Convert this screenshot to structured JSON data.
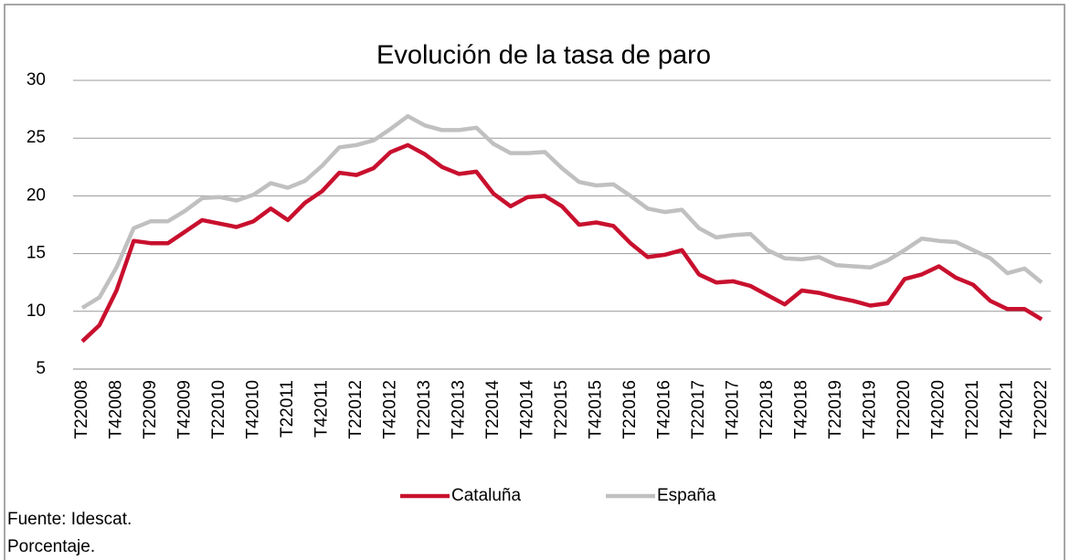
{
  "chart_data": {
    "type": "line",
    "title": "Evolución de la tasa de paro",
    "categories": [
      "T22008",
      null,
      "T42008",
      null,
      "T22009",
      null,
      "T42009",
      null,
      "T22010",
      null,
      "T42010",
      null,
      "T22011",
      null,
      "T42011",
      null,
      "T22012",
      null,
      "T42012",
      null,
      "T22013",
      null,
      "T42013",
      null,
      "T22014",
      null,
      "T42014",
      null,
      "T22015",
      null,
      "T42015",
      null,
      "T22016",
      null,
      "T42016",
      null,
      "T22017",
      null,
      "T42017",
      null,
      "T22018",
      null,
      "T42018",
      null,
      "T22019",
      null,
      "T42019",
      null,
      "T22020",
      null,
      "T42020",
      null,
      "T22021",
      null,
      "T42021",
      null,
      "T22022"
    ],
    "series": [
      {
        "name": "Cataluña",
        "color": "#c8102e",
        "values": [
          7.4,
          8.8,
          11.8,
          16.1,
          15.9,
          15.9,
          16.9,
          17.9,
          17.6,
          17.3,
          17.8,
          18.9,
          17.9,
          19.4,
          20.4,
          22.0,
          21.8,
          22.4,
          23.8,
          24.4,
          23.6,
          22.5,
          21.9,
          22.1,
          20.2,
          19.1,
          19.9,
          20.0,
          19.1,
          17.5,
          17.7,
          17.4,
          15.9,
          14.7,
          14.9,
          15.3,
          13.2,
          12.5,
          12.6,
          12.2,
          11.4,
          10.6,
          11.8,
          11.6,
          11.2,
          10.9,
          10.5,
          10.7,
          12.8,
          13.2,
          13.9,
          12.9,
          12.3,
          10.9,
          10.2,
          10.2,
          9.3
        ]
      },
      {
        "name": "España",
        "color": "#c0c0c0",
        "values": [
          10.3,
          11.2,
          13.8,
          17.2,
          17.8,
          17.8,
          18.7,
          19.8,
          19.9,
          19.6,
          20.1,
          21.1,
          20.7,
          21.3,
          22.6,
          24.2,
          24.4,
          24.8,
          25.8,
          26.9,
          26.1,
          25.7,
          25.7,
          25.9,
          24.5,
          23.7,
          23.7,
          23.8,
          22.4,
          21.2,
          20.9,
          21.0,
          20.0,
          18.9,
          18.6,
          18.8,
          17.2,
          16.4,
          16.6,
          16.7,
          15.3,
          14.6,
          14.5,
          14.7,
          14.0,
          13.9,
          13.8,
          14.4,
          15.3,
          16.3,
          16.1,
          16.0,
          15.3,
          14.6,
          13.3,
          13.7,
          12.5
        ]
      }
    ],
    "ylim": [
      5,
      30
    ],
    "yticks": [
      5,
      10,
      15,
      20,
      25,
      30
    ],
    "grid": true,
    "legend": "bottom",
    "notes": [
      "Fuente: Idescat.",
      "Porcentaje."
    ]
  }
}
